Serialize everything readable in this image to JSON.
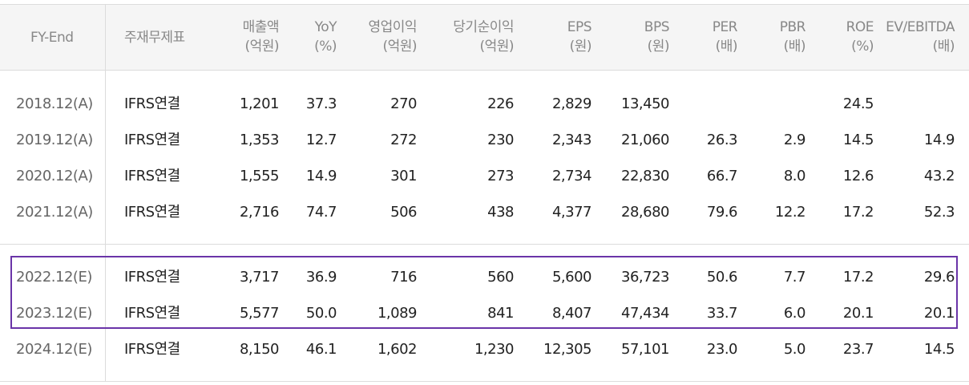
{
  "table": {
    "headers": [
      {
        "line1": "FY-End",
        "line2": ""
      },
      {
        "line1": "주재무제표",
        "line2": ""
      },
      {
        "line1": "매출액",
        "line2": "(억원)"
      },
      {
        "line1": "YoY",
        "line2": "(%)"
      },
      {
        "line1": "영업이익",
        "line2": "(억원)"
      },
      {
        "line1": "당기순이익",
        "line2": "(억원)"
      },
      {
        "line1": "EPS",
        "line2": "(원)"
      },
      {
        "line1": "BPS",
        "line2": "(원)"
      },
      {
        "line1": "PER",
        "line2": "(배)"
      },
      {
        "line1": "PBR",
        "line2": "(배)"
      },
      {
        "line1": "ROE",
        "line2": "(%)"
      },
      {
        "line1": "EV/EBITDA",
        "line2": "(배)"
      }
    ],
    "rows": [
      [
        "2018.12(A)",
        "IFRS연결",
        "1,201",
        "37.3",
        "270",
        "226",
        "2,829",
        "13,450",
        "",
        "",
        "24.5",
        ""
      ],
      [
        "2019.12(A)",
        "IFRS연결",
        "1,353",
        "12.7",
        "272",
        "230",
        "2,343",
        "21,060",
        "26.3",
        "2.9",
        "14.5",
        "14.9"
      ],
      [
        "2020.12(A)",
        "IFRS연결",
        "1,555",
        "14.9",
        "301",
        "273",
        "2,734",
        "22,830",
        "66.7",
        "8.0",
        "12.6",
        "43.2"
      ],
      [
        "2021.12(A)",
        "IFRS연결",
        "2,716",
        "74.7",
        "506",
        "438",
        "4,377",
        "28,680",
        "79.6",
        "12.2",
        "17.2",
        "52.3"
      ],
      [
        "2022.12(E)",
        "IFRS연결",
        "3,717",
        "36.9",
        "716",
        "560",
        "5,600",
        "36,723",
        "50.6",
        "7.7",
        "17.2",
        "29.6"
      ],
      [
        "2023.12(E)",
        "IFRS연결",
        "5,577",
        "50.0",
        "1,089",
        "841",
        "8,407",
        "47,434",
        "33.7",
        "6.0",
        "20.1",
        "20.1"
      ],
      [
        "2024.12(E)",
        "IFRS연결",
        "8,150",
        "46.1",
        "1,602",
        "1,230",
        "12,305",
        "57,101",
        "23.0",
        "5.0",
        "23.7",
        "14.5"
      ]
    ],
    "highlight_color": "#6a34a8"
  }
}
